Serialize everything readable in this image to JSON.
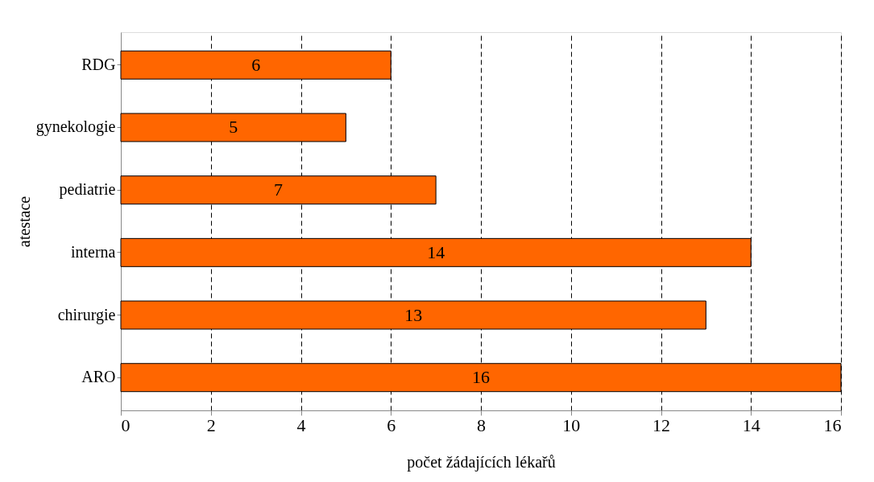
{
  "chart_data": {
    "type": "bar",
    "orientation": "horizontal",
    "categories": [
      "RDG",
      "gynekologie",
      "pediatrie",
      "interna",
      "chirurgie",
      "ARO"
    ],
    "values": [
      6,
      5,
      7,
      14,
      13,
      16
    ],
    "color": "#ff6600",
    "xlabel": "počet žádajících lékařů",
    "ylabel": "atestace",
    "xlim": [
      0,
      16
    ],
    "xticks": [
      0,
      2,
      4,
      6,
      8,
      10,
      12,
      14,
      16
    ],
    "grid": "x",
    "data_labels": true
  }
}
